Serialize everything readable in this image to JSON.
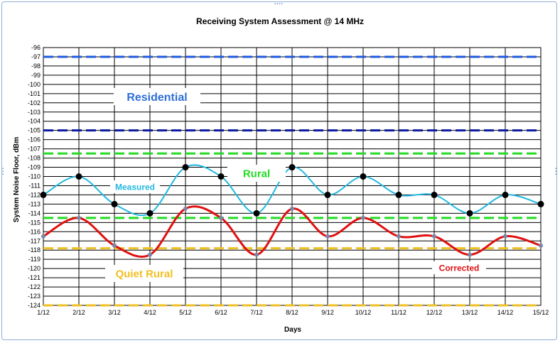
{
  "chart_data": {
    "type": "line",
    "title": "Receiving System Assessment @ 14  MHz",
    "xlabel": "Days",
    "ylabel": "System Noise Floor, dBm",
    "categories": [
      "1/12",
      "2/12",
      "3/12",
      "4/12",
      "5/12",
      "6/12",
      "7/12",
      "8/12",
      "9/12",
      "10/12",
      "11/12",
      "12/12",
      "13/12",
      "14/12",
      "15/12"
    ],
    "ylim": [
      -124,
      -96
    ],
    "yticks": [
      "-96",
      "-97",
      "-98",
      "-99",
      "-100",
      "-101",
      "-102",
      "-103",
      "-104",
      "-105",
      "-106",
      "-107",
      "-108",
      "-109",
      "-110",
      "-111",
      "-112",
      "-113",
      "-114",
      "-115",
      "-116",
      "-117",
      "-118",
      "-119",
      "-120",
      "-121",
      "-122",
      "-123",
      "-124"
    ],
    "grid": true,
    "series": [
      {
        "name": "Measured",
        "color": "#22b8e0",
        "values": [
          -112,
          -110,
          -113,
          -114,
          -109,
          -110,
          -114,
          -109,
          -112,
          -110,
          -112,
          -112,
          -114,
          -112,
          -113
        ]
      },
      {
        "name": "Corrected",
        "color": "#e01010",
        "values": [
          -116.5,
          -114.5,
          -117.5,
          -118.5,
          -113.5,
          -114.5,
          -118.5,
          -113.5,
          -116.5,
          -114.5,
          -116.5,
          -116.5,
          -118.5,
          -116.5,
          -117.5
        ]
      }
    ],
    "reference_lines": [
      {
        "value": -97,
        "color": "#1f5ae0"
      },
      {
        "value": -105,
        "color": "#0a1aa0"
      },
      {
        "value": -107.5,
        "color": "#22dd22"
      },
      {
        "value": -114.5,
        "color": "#22dd22"
      },
      {
        "value": -117.8,
        "color": "#f0c020"
      },
      {
        "value": -124,
        "color": "#f0c020"
      }
    ],
    "annotations": [
      {
        "text": "Residential",
        "color": "#2e6fd8"
      },
      {
        "text": "Rural",
        "color": "#22dd22"
      },
      {
        "text": "Quiet Rural",
        "color": "#f0c020"
      },
      {
        "text": "Measured",
        "color": "#22b8e0"
      },
      {
        "text": "Corrected",
        "color": "#e01010"
      }
    ]
  }
}
